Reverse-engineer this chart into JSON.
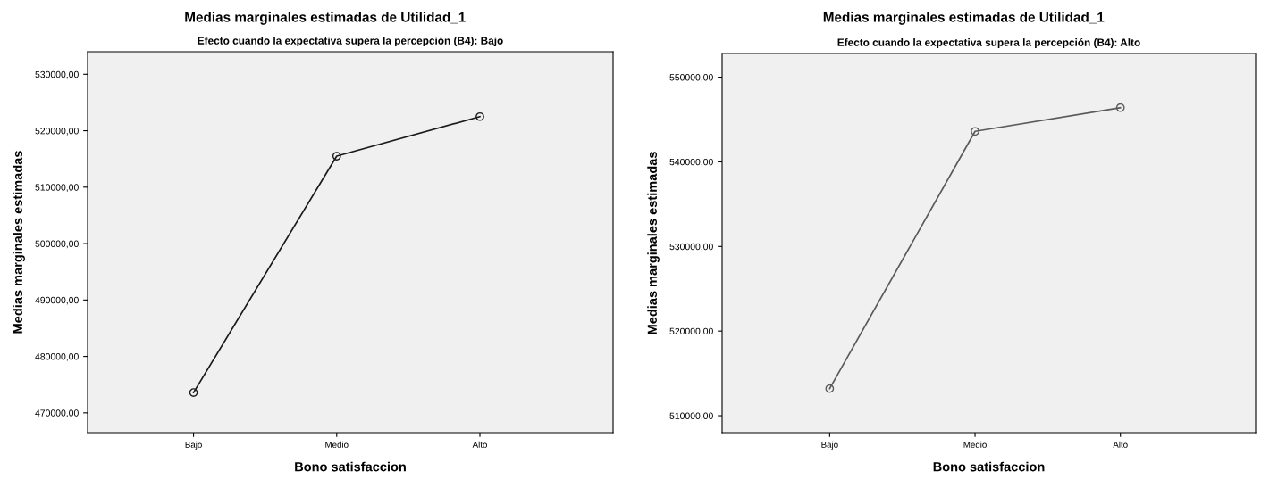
{
  "chart_data": [
    {
      "type": "line",
      "title": "Medias marginales estimadas de Utilidad_1",
      "subtitle": "Efecto cuando la expectativa supera la percepción (B4): Bajo",
      "xlabel": "Bono satisfaccion",
      "ylabel": "Medias marginales estimadas",
      "categories": [
        "Bajo",
        "Medio",
        "Alto"
      ],
      "series": [
        {
          "color": "#1a1a1a",
          "values": [
            473600,
            515500,
            522500
          ]
        }
      ],
      "ylim": [
        466500,
        534000
      ],
      "yticks": [
        {
          "value": 470000,
          "label": "470000,00"
        },
        {
          "value": 480000,
          "label": "480000,00"
        },
        {
          "value": 490000,
          "label": "490000,00"
        },
        {
          "value": 500000,
          "label": "500000,00"
        },
        {
          "value": 510000,
          "label": "510000,00"
        },
        {
          "value": 520000,
          "label": "520000,00"
        },
        {
          "value": 530000,
          "label": "530000,00"
        }
      ],
      "grid": false,
      "legend": false,
      "marker": "circle",
      "line_style": "solid"
    },
    {
      "type": "line",
      "title": "Medias marginales estimadas de Utilidad_1",
      "subtitle": "Efecto cuando la expectativa supera la percepción (B4): Alto",
      "xlabel": "Bono satisfaccion",
      "ylabel": "Medias marginales estimadas",
      "categories": [
        "Bajo",
        "Medio",
        "Alto"
      ],
      "series": [
        {
          "color": "#5a5a5a",
          "values": [
            513200,
            543600,
            546400
          ]
        }
      ],
      "ylim": [
        508000,
        552800
      ],
      "yticks": [
        {
          "value": 510000,
          "label": "510000,00"
        },
        {
          "value": 520000,
          "label": "520000,00"
        },
        {
          "value": 530000,
          "label": "530000,00"
        },
        {
          "value": 540000,
          "label": "540000,00"
        },
        {
          "value": 550000,
          "label": "550000,00"
        }
      ],
      "grid": false,
      "legend": false,
      "marker": "circle",
      "line_style": "solid"
    }
  ]
}
